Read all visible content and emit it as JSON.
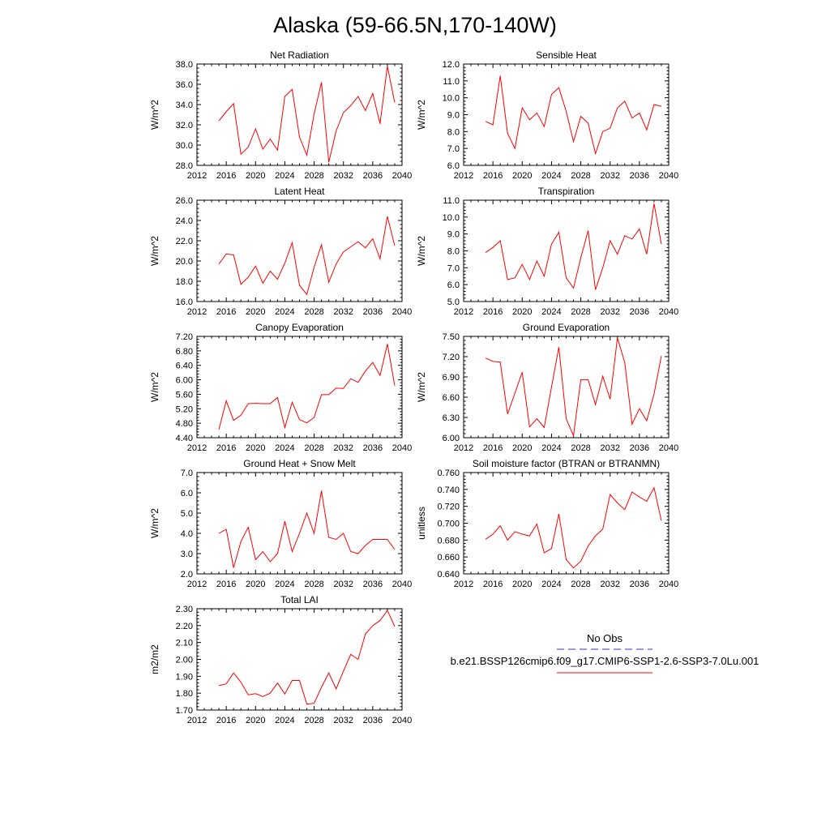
{
  "title": "Alaska (59-66.5N,170-140W)",
  "colors": {
    "model": "#ff0000",
    "obs": "#3333cc",
    "axis": "#000000"
  },
  "legend": {
    "obs_label": "No Obs",
    "model_label": "b.e21.BSSP126cmip6.f09_g17.CMIP6-SSP1-2.6-SSP3-7.0Lu.001"
  },
  "chart_data": [
    {
      "type": "line",
      "title": "Net Radiation",
      "ylabel": "W/m^2",
      "xlim": [
        2012,
        2040
      ],
      "ylim": [
        28.0,
        38.0
      ],
      "xticks": [
        2012,
        2016,
        2020,
        2024,
        2028,
        2032,
        2036,
        2040
      ],
      "xtick_labels": [
        "2012",
        "2016",
        "2020",
        "2024",
        "2028",
        "2032",
        "2036",
        "2040"
      ],
      "yticks": [
        28.0,
        30.0,
        32.0,
        34.0,
        36.0,
        38.0
      ],
      "ytick_labels": [
        "28.0",
        "30.0",
        "32.0",
        "34.0",
        "36.0",
        "38.0"
      ],
      "x": [
        2015,
        2016,
        2017,
        2018,
        2019,
        2020,
        2021,
        2022,
        2023,
        2024,
        2025,
        2026,
        2027,
        2028,
        2029,
        2030,
        2031,
        2032,
        2033,
        2034,
        2035,
        2036,
        2037,
        2038,
        2039
      ],
      "series": [
        {
          "values": [
            32.4,
            33.3,
            34.1,
            29.1,
            29.8,
            31.6,
            29.6,
            30.6,
            29.5,
            34.8,
            35.5,
            30.8,
            29.0,
            33.1,
            36.2,
            28.3,
            31.4,
            33.2,
            33.9,
            34.8,
            33.4,
            35.1,
            32.1,
            37.8,
            34.2
          ]
        }
      ]
    },
    {
      "type": "line",
      "title": "Sensible Heat",
      "ylabel": "W/m^2",
      "xlim": [
        2012,
        2040
      ],
      "ylim": [
        6.0,
        12.0
      ],
      "xticks": [
        2012,
        2016,
        2020,
        2024,
        2028,
        2032,
        2036,
        2040
      ],
      "xtick_labels": [
        "2012",
        "2016",
        "2020",
        "2024",
        "2028",
        "2032",
        "2036",
        "2040"
      ],
      "yticks": [
        6.0,
        7.0,
        8.0,
        9.0,
        10.0,
        11.0,
        12.0
      ],
      "ytick_labels": [
        "6.0",
        "7.0",
        "8.0",
        "9.0",
        "10.0",
        "11.0",
        "12.0"
      ],
      "x": [
        2015,
        2016,
        2017,
        2018,
        2019,
        2020,
        2021,
        2022,
        2023,
        2024,
        2025,
        2026,
        2027,
        2028,
        2029,
        2030,
        2031,
        2032,
        2033,
        2034,
        2035,
        2036,
        2037,
        2038,
        2039
      ],
      "series": [
        {
          "values": [
            8.6,
            8.4,
            11.3,
            7.9,
            7.0,
            9.4,
            8.7,
            9.1,
            8.3,
            10.2,
            10.6,
            9.2,
            7.4,
            8.9,
            8.5,
            6.7,
            8.0,
            8.2,
            9.4,
            9.8,
            8.8,
            9.1,
            8.1,
            9.6,
            9.5
          ]
        }
      ]
    },
    {
      "type": "line",
      "title": "Latent Heat",
      "ylabel": "W/m^2",
      "xlim": [
        2012,
        2040
      ],
      "ylim": [
        16.0,
        26.0
      ],
      "xticks": [
        2012,
        2016,
        2020,
        2024,
        2028,
        2032,
        2036,
        2040
      ],
      "xtick_labels": [
        "2012",
        "2016",
        "2020",
        "2024",
        "2028",
        "2032",
        "2036",
        "2040"
      ],
      "yticks": [
        16.0,
        18.0,
        20.0,
        22.0,
        24.0,
        26.0
      ],
      "ytick_labels": [
        "16.0",
        "18.0",
        "20.0",
        "22.0",
        "24.0",
        "26.0"
      ],
      "x": [
        2015,
        2016,
        2017,
        2018,
        2019,
        2020,
        2021,
        2022,
        2023,
        2024,
        2025,
        2026,
        2027,
        2028,
        2029,
        2030,
        2031,
        2032,
        2033,
        2034,
        2035,
        2036,
        2037,
        2038,
        2039
      ],
      "series": [
        {
          "values": [
            19.7,
            20.7,
            20.6,
            17.7,
            18.4,
            19.5,
            17.8,
            19.0,
            18.2,
            19.8,
            21.8,
            17.6,
            16.7,
            19.4,
            21.6,
            17.9,
            19.7,
            20.9,
            21.4,
            21.9,
            21.3,
            22.2,
            20.2,
            24.4,
            21.5
          ]
        }
      ]
    },
    {
      "type": "line",
      "title": "Transpiration",
      "ylabel": "W/m^2",
      "xlim": [
        2012,
        2040
      ],
      "ylim": [
        5.0,
        11.0
      ],
      "xticks": [
        2012,
        2016,
        2020,
        2024,
        2028,
        2032,
        2036,
        2040
      ],
      "xtick_labels": [
        "2012",
        "2016",
        "2020",
        "2024",
        "2028",
        "2032",
        "2036",
        "2040"
      ],
      "yticks": [
        5.0,
        6.0,
        7.0,
        8.0,
        9.0,
        10.0,
        11.0
      ],
      "ytick_labels": [
        "5.0",
        "6.0",
        "7.0",
        "8.0",
        "9.0",
        "10.0",
        "11.0"
      ],
      "x": [
        2015,
        2016,
        2017,
        2018,
        2019,
        2020,
        2021,
        2022,
        2023,
        2024,
        2025,
        2026,
        2027,
        2028,
        2029,
        2030,
        2031,
        2032,
        2033,
        2034,
        2035,
        2036,
        2037,
        2038,
        2039
      ],
      "series": [
        {
          "values": [
            7.9,
            8.2,
            8.6,
            6.3,
            6.4,
            7.2,
            6.3,
            7.4,
            6.5,
            8.4,
            9.1,
            6.4,
            5.8,
            7.6,
            9.2,
            5.7,
            7.0,
            8.6,
            7.8,
            8.9,
            8.7,
            9.3,
            7.8,
            10.8,
            8.4
          ]
        }
      ]
    },
    {
      "type": "line",
      "title": "Canopy Evaporation",
      "ylabel": "W/m^2",
      "xlim": [
        2012,
        2040
      ],
      "ylim": [
        4.4,
        7.2
      ],
      "xticks": [
        2012,
        2016,
        2020,
        2024,
        2028,
        2032,
        2036,
        2040
      ],
      "xtick_labels": [
        "2012",
        "2016",
        "2020",
        "2024",
        "2028",
        "2032",
        "2036",
        "2040"
      ],
      "yticks": [
        4.4,
        4.8,
        5.2,
        5.6,
        6.0,
        6.4,
        6.8,
        7.2
      ],
      "ytick_labels": [
        "4.40",
        "4.80",
        "5.20",
        "5.60",
        "6.00",
        "6.40",
        "6.80",
        "7.20"
      ],
      "x": [
        2015,
        2016,
        2017,
        2018,
        2019,
        2020,
        2021,
        2022,
        2023,
        2024,
        2025,
        2026,
        2027,
        2028,
        2029,
        2030,
        2031,
        2032,
        2033,
        2034,
        2035,
        2036,
        2037,
        2038,
        2039
      ],
      "series": [
        {
          "values": [
            4.63,
            5.42,
            4.88,
            5.02,
            5.34,
            5.35,
            5.34,
            5.34,
            5.51,
            4.68,
            5.38,
            4.9,
            4.81,
            4.96,
            5.59,
            5.59,
            5.77,
            5.76,
            6.03,
            5.93,
            6.24,
            6.48,
            6.12,
            6.99,
            5.84
          ]
        }
      ]
    },
    {
      "type": "line",
      "title": "Ground Evaporation",
      "ylabel": "W/m^2",
      "xlim": [
        2012,
        2040
      ],
      "ylim": [
        6.0,
        7.5
      ],
      "xticks": [
        2012,
        2016,
        2020,
        2024,
        2028,
        2032,
        2036,
        2040
      ],
      "xtick_labels": [
        "2012",
        "2016",
        "2020",
        "2024",
        "2028",
        "2032",
        "2036",
        "2040"
      ],
      "yticks": [
        6.0,
        6.3,
        6.6,
        6.9,
        7.2,
        7.5
      ],
      "ytick_labels": [
        "6.00",
        "6.30",
        "6.60",
        "6.90",
        "7.20",
        "7.50"
      ],
      "x": [
        2015,
        2016,
        2017,
        2018,
        2019,
        2020,
        2021,
        2022,
        2023,
        2024,
        2025,
        2026,
        2027,
        2028,
        2029,
        2030,
        2031,
        2032,
        2033,
        2034,
        2035,
        2036,
        2037,
        2038,
        2039
      ],
      "series": [
        {
          "values": [
            7.18,
            7.13,
            7.12,
            6.35,
            6.66,
            6.97,
            6.16,
            6.28,
            6.15,
            6.75,
            7.34,
            6.28,
            6.03,
            6.86,
            6.86,
            6.49,
            6.91,
            6.57,
            7.48,
            7.11,
            6.2,
            6.43,
            6.25,
            6.65,
            7.21
          ]
        }
      ]
    },
    {
      "type": "line",
      "title": "Ground Heat + Snow Melt",
      "ylabel": "W/m^2",
      "xlim": [
        2012,
        2040
      ],
      "ylim": [
        2.0,
        7.0
      ],
      "xticks": [
        2012,
        2016,
        2020,
        2024,
        2028,
        2032,
        2036,
        2040
      ],
      "xtick_labels": [
        "2012",
        "2016",
        "2020",
        "2024",
        "2028",
        "2032",
        "2036",
        "2040"
      ],
      "yticks": [
        2.0,
        3.0,
        4.0,
        5.0,
        6.0,
        7.0
      ],
      "ytick_labels": [
        "2.0",
        "3.0",
        "4.0",
        "5.0",
        "6.0",
        "7.0"
      ],
      "x": [
        2015,
        2016,
        2017,
        2018,
        2019,
        2020,
        2021,
        2022,
        2023,
        2024,
        2025,
        2026,
        2027,
        2028,
        2029,
        2030,
        2031,
        2032,
        2033,
        2034,
        2035,
        2036,
        2037,
        2038,
        2039
      ],
      "series": [
        {
          "values": [
            4.0,
            4.2,
            2.3,
            3.6,
            4.3,
            2.7,
            3.1,
            2.6,
            3.0,
            4.6,
            3.1,
            4.0,
            5.0,
            4.0,
            6.1,
            3.8,
            3.7,
            4.0,
            3.1,
            3.0,
            3.4,
            3.7,
            3.7,
            3.7,
            3.2
          ]
        }
      ]
    },
    {
      "type": "line",
      "title": "Soil moisture factor (BTRAN or BTRANMN)",
      "ylabel": "unitless",
      "xlim": [
        2012,
        2040
      ],
      "ylim": [
        0.64,
        0.76
      ],
      "xticks": [
        2012,
        2016,
        2020,
        2024,
        2028,
        2032,
        2036,
        2040
      ],
      "xtick_labels": [
        "2012",
        "2016",
        "2020",
        "2024",
        "2028",
        "2032",
        "2036",
        "2040"
      ],
      "yticks": [
        0.64,
        0.66,
        0.68,
        0.7,
        0.72,
        0.74,
        0.76
      ],
      "ytick_labels": [
        "0.640",
        "0.660",
        "0.680",
        "0.700",
        "0.720",
        "0.740",
        "0.760"
      ],
      "x": [
        2015,
        2016,
        2017,
        2018,
        2019,
        2020,
        2021,
        2022,
        2023,
        2024,
        2025,
        2026,
        2027,
        2028,
        2029,
        2030,
        2031,
        2032,
        2033,
        2034,
        2035,
        2036,
        2037,
        2038,
        2039
      ],
      "series": [
        {
          "values": [
            0.681,
            0.687,
            0.697,
            0.68,
            0.69,
            0.687,
            0.685,
            0.699,
            0.665,
            0.67,
            0.711,
            0.657,
            0.647,
            0.655,
            0.673,
            0.685,
            0.693,
            0.734,
            0.724,
            0.716,
            0.737,
            0.731,
            0.726,
            0.742,
            0.703
          ]
        }
      ]
    },
    {
      "type": "line",
      "title": "Total LAI",
      "ylabel": "m2/m2",
      "xlim": [
        2012,
        2040
      ],
      "ylim": [
        1.7,
        2.3
      ],
      "xticks": [
        2012,
        2016,
        2020,
        2024,
        2028,
        2032,
        2036,
        2040
      ],
      "xtick_labels": [
        "2012",
        "2016",
        "2020",
        "2024",
        "2028",
        "2032",
        "2036",
        "2040"
      ],
      "yticks": [
        1.7,
        1.8,
        1.9,
        2.0,
        2.1,
        2.2,
        2.3
      ],
      "ytick_labels": [
        "1.70",
        "1.80",
        "1.90",
        "2.00",
        "2.10",
        "2.20",
        "2.30"
      ],
      "x": [
        2015,
        2016,
        2017,
        2018,
        2019,
        2020,
        2021,
        2022,
        2023,
        2024,
        2025,
        2026,
        2027,
        2028,
        2029,
        2030,
        2031,
        2032,
        2033,
        2034,
        2035,
        2036,
        2037,
        2038,
        2039
      ],
      "series": [
        {
          "values": [
            1.845,
            1.855,
            1.92,
            1.865,
            1.79,
            1.797,
            1.78,
            1.8,
            1.86,
            1.795,
            1.875,
            1.875,
            1.735,
            1.74,
            1.835,
            1.92,
            1.825,
            1.93,
            2.03,
            2.0,
            2.15,
            2.2,
            2.23,
            2.29,
            2.195
          ]
        }
      ]
    }
  ]
}
